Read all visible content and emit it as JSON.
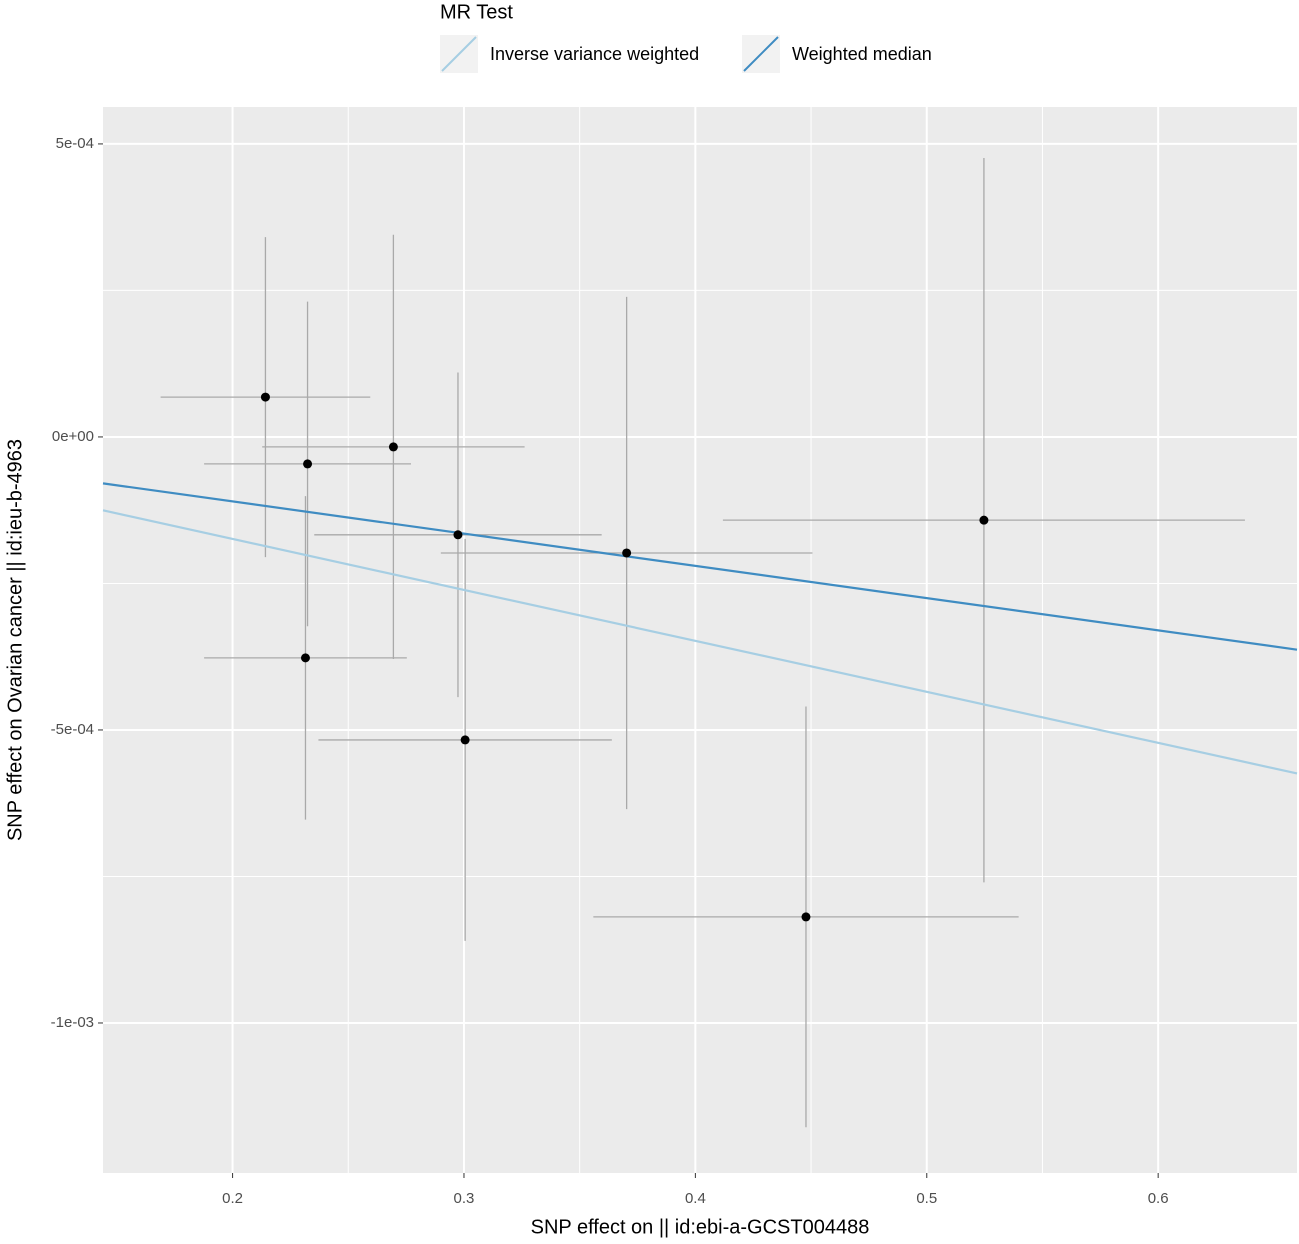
{
  "chart_data": {
    "type": "scatter",
    "x_label": "SNP effect on  || id:ebi-a-GCST004488",
    "y_label": "SNP effect on Ovarian cancer || id:ieu-b-4963",
    "legend_title": "MR Test",
    "xlim": [
      0.144,
      0.66
    ],
    "ylim": [
      -0.001256,
      0.000563
    ],
    "xticks": [
      0.2,
      0.3,
      0.4,
      0.5,
      0.6
    ],
    "yticks": [
      {
        "value": 0.0005,
        "label": "5e-04"
      },
      {
        "value": 0,
        "label": "0e+00"
      },
      {
        "value": -0.0005,
        "label": "-5e-04"
      },
      {
        "value": -0.001,
        "label": "-1e-03"
      }
    ],
    "grid": true,
    "legend_position": "top",
    "point_color": "#000000",
    "errorbar_color": "#a9a9a9",
    "points": {
      "x": [
        0.2142,
        0.2324,
        0.2695,
        0.2974,
        0.3703,
        0.5247,
        0.2315,
        0.3005,
        0.4478
      ],
      "y": [
        6.8e-05,
        -4.6e-05,
        -1.7e-05,
        -0.000167,
        -0.000198,
        -0.000142,
        -0.000377,
        -0.000517,
        -0.000819
      ],
      "x_se": [
        0.0453,
        0.0447,
        0.0567,
        0.0621,
        0.0803,
        0.1128,
        0.0438,
        0.0634,
        0.0919
      ],
      "y_se": [
        0.000273,
        0.000277,
        0.000362,
        0.000277,
        0.000437,
        0.000618,
        0.000276,
        0.000343,
        0.000359
      ]
    },
    "series": [
      {
        "name": "Inverse variance weighted",
        "color": "#a6cee3",
        "slope": -0.00087
      },
      {
        "name": "Weighted median",
        "color": "#3f8cc2",
        "slope": -0.00055
      }
    ]
  }
}
